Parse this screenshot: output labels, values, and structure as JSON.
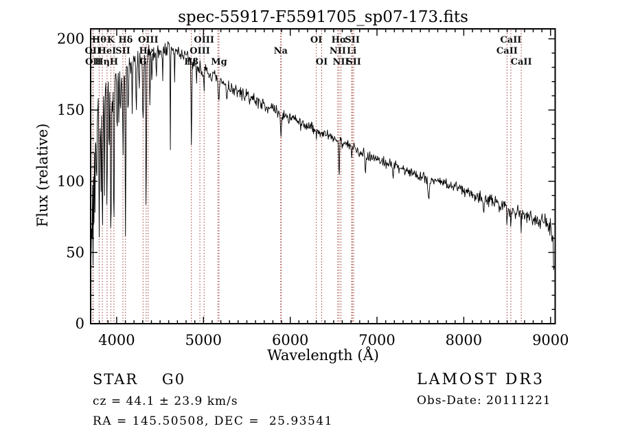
{
  "annotations": {
    "class_label": "STAR    G0",
    "cz": "cz = 44.1 ± 23.9 km/s",
    "radec": "RA = 145.50508, DEC =  25.93541",
    "survey": "LAMOST DR3",
    "obs_date": "Obs-Date: 20111221"
  },
  "chart_data": {
    "type": "line",
    "title": "spec-55917-F5591705_sp07-173.fits",
    "xlabel": "Wavelength (Å)",
    "ylabel": "Flux (relative)",
    "xlim": [
      3700,
      9053
    ],
    "ylim": [
      0,
      207
    ],
    "x_ticks": [
      4000,
      5000,
      6000,
      7000,
      8000,
      9000
    ],
    "y_ticks": [
      0,
      50,
      100,
      150,
      200
    ],
    "x_minor_step": 100,
    "y_minor_step": 10,
    "grid": false,
    "colors": {
      "spectrum": "#000000",
      "line_marker": "#993630",
      "frame": "#000000"
    },
    "spectral_lines": [
      {
        "label": "OII",
        "wavelength": 3726,
        "row": 2
      },
      {
        "label": "OII",
        "wavelength": 3729,
        "row": 3
      },
      {
        "label": "Hθ",
        "wavelength": 3798,
        "row": 1
      },
      {
        "label": "Hη",
        "wavelength": 3835,
        "row": 3
      },
      {
        "label": "HeI",
        "wavelength": 3889,
        "row": 2
      },
      {
        "label": "K",
        "wavelength": 3933,
        "row": 1
      },
      {
        "label": "H",
        "wavelength": 3968,
        "row": 3
      },
      {
        "label": "SII",
        "wavelength": 4072,
        "row": 2
      },
      {
        "label": "Hδ",
        "wavelength": 4102,
        "row": 1
      },
      {
        "label": "G",
        "wavelength": 4304,
        "row": 3
      },
      {
        "label": "Hγ",
        "wavelength": 4340,
        "row": 2
      },
      {
        "label": "OIII",
        "wavelength": 4363,
        "row": 1
      },
      {
        "label": "Hβ",
        "wavelength": 4861,
        "row": 3
      },
      {
        "label": "OIII",
        "wavelength": 4959,
        "row": 2
      },
      {
        "label": "OIII",
        "wavelength": 5007,
        "row": 1
      },
      {
        "label": "",
        "wavelength": 5167,
        "row": 3
      },
      {
        "label": "Mg",
        "wavelength": 5180,
        "row": 3
      },
      {
        "label": "Na",
        "wavelength": 5890,
        "row": 2
      },
      {
        "label": "",
        "wavelength": 5896,
        "row": 2
      },
      {
        "label": "OI",
        "wavelength": 6300,
        "row": 1
      },
      {
        "label": "OI",
        "wavelength": 6363,
        "row": 3
      },
      {
        "label": "NII",
        "wavelength": 6548,
        "row": 2
      },
      {
        "label": "Hα",
        "wavelength": 6563,
        "row": 1
      },
      {
        "label": "NII",
        "wavelength": 6584,
        "row": 3
      },
      {
        "label": "Li",
        "wavelength": 6708,
        "row": 2
      },
      {
        "label": "SII",
        "wavelength": 6716,
        "row": 1
      },
      {
        "label": "SII",
        "wavelength": 6731,
        "row": 3
      },
      {
        "label": "CaII",
        "wavelength": 8498,
        "row": 2
      },
      {
        "label": "CaII",
        "wavelength": 8542,
        "row": 1
      },
      {
        "label": "CaII",
        "wavelength": 8662,
        "row": 3
      }
    ],
    "continuum_points": [
      [
        3700,
        125
      ],
      [
        3760,
        143
      ],
      [
        3820,
        152
      ],
      [
        3880,
        159
      ],
      [
        3940,
        165
      ],
      [
        4000,
        169
      ],
      [
        4080,
        174
      ],
      [
        4160,
        180
      ],
      [
        4240,
        184
      ],
      [
        4320,
        185
      ],
      [
        4400,
        189
      ],
      [
        4500,
        192
      ],
      [
        4600,
        193
      ],
      [
        4700,
        191
      ],
      [
        4800,
        187
      ],
      [
        4900,
        183
      ],
      [
        5000,
        177
      ],
      [
        5150,
        172
      ],
      [
        5300,
        166
      ],
      [
        5450,
        161
      ],
      [
        5600,
        157
      ],
      [
        5750,
        152
      ],
      [
        5900,
        147
      ],
      [
        6050,
        143
      ],
      [
        6200,
        139
      ],
      [
        6350,
        134
      ],
      [
        6500,
        130
      ],
      [
        6650,
        126
      ],
      [
        6800,
        121
      ],
      [
        6950,
        117
      ],
      [
        7100,
        113
      ],
      [
        7250,
        110
      ],
      [
        7400,
        106
      ],
      [
        7550,
        103
      ],
      [
        7700,
        100
      ],
      [
        7850,
        97
      ],
      [
        8000,
        94
      ],
      [
        8150,
        90
      ],
      [
        8300,
        86
      ],
      [
        8450,
        83
      ],
      [
        8600,
        79
      ],
      [
        8750,
        76
      ],
      [
        8900,
        72
      ],
      [
        9000,
        69
      ],
      [
        9025,
        60
      ],
      [
        9045,
        53
      ]
    ],
    "absorption_features": [
      [
        3705,
        120,
        3
      ],
      [
        3714,
        85,
        2.5
      ],
      [
        3726,
        75,
        4
      ],
      [
        3737,
        60,
        3
      ],
      [
        3750,
        70,
        3
      ],
      [
        3770,
        55,
        3
      ],
      [
        3798,
        88,
        4
      ],
      [
        3820,
        58,
        3
      ],
      [
        3835,
        95,
        4
      ],
      [
        3860,
        55,
        3
      ],
      [
        3889,
        98,
        4
      ],
      [
        3912,
        48,
        3
      ],
      [
        3933,
        112,
        5
      ],
      [
        3968,
        100,
        5
      ],
      [
        4005,
        40,
        3
      ],
      [
        4026,
        44,
        3
      ],
      [
        4045,
        34,
        3
      ],
      [
        4072,
        55,
        3
      ],
      [
        4102,
        118,
        4
      ],
      [
        4132,
        40,
        3
      ],
      [
        4178,
        34,
        3
      ],
      [
        4226,
        48,
        3
      ],
      [
        4260,
        28,
        3
      ],
      [
        4304,
        44,
        6
      ],
      [
        4340,
        115,
        4
      ],
      [
        4383,
        36,
        3
      ],
      [
        4405,
        24,
        3
      ],
      [
        4457,
        20,
        3
      ],
      [
        4530,
        22,
        3
      ],
      [
        4618,
        72,
        2.5
      ],
      [
        4668,
        20,
        3
      ],
      [
        4861,
        62,
        4
      ],
      [
        4920,
        16,
        3
      ],
      [
        5007,
        14,
        2.5
      ],
      [
        5175,
        16,
        7
      ],
      [
        5270,
        12,
        4
      ],
      [
        5893,
        17,
        5
      ],
      [
        6122,
        8,
        3
      ],
      [
        6300,
        7,
        3
      ],
      [
        6563,
        27,
        3.5
      ],
      [
        6710,
        9,
        4
      ],
      [
        6867,
        12,
        6
      ],
      [
        7186,
        8,
        6
      ],
      [
        7594,
        15,
        9
      ],
      [
        8230,
        7,
        4
      ],
      [
        8498,
        13,
        3
      ],
      [
        8542,
        17,
        3
      ],
      [
        8662,
        14,
        3
      ],
      [
        9038,
        22,
        5
      ]
    ],
    "noise_sigma": [
      [
        3700,
        40
      ],
      [
        3715,
        28
      ],
      [
        3740,
        16
      ],
      [
        3800,
        13
      ],
      [
        3900,
        11
      ],
      [
        4000,
        9
      ],
      [
        4150,
        7
      ],
      [
        4350,
        5.5
      ],
      [
        4600,
        4.5
      ],
      [
        5000,
        3.8
      ],
      [
        5500,
        3.2
      ],
      [
        6000,
        3
      ],
      [
        6500,
        2.8
      ],
      [
        7000,
        2.8
      ],
      [
        7500,
        3
      ],
      [
        8000,
        3.2
      ],
      [
        8400,
        3.6
      ],
      [
        8700,
        4.2
      ],
      [
        8950,
        4.5
      ],
      [
        9050,
        8
      ]
    ],
    "sample_step_angstrom": 5.5
  }
}
